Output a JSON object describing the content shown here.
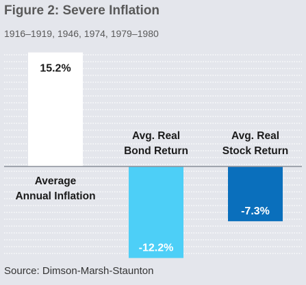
{
  "title": "Figure 2: Severe Inflation",
  "subtitle": "1916–1919, 1946, 1974, 1979–1980",
  "source": "Source: Dimson-Marsh-Staunton",
  "chart_data": {
    "type": "bar",
    "categories": [
      [
        "Average",
        "Annual Inflation"
      ],
      [
        "Avg. Real",
        "Bond Return"
      ],
      [
        "Avg. Real",
        "Stock Return"
      ]
    ],
    "values": [
      15.2,
      -12.2,
      -7.3
    ],
    "value_labels": [
      "15.2%",
      "-12.2%",
      "-7.3%"
    ],
    "colors": [
      "#ffffff",
      "#4dcff7",
      "#0a6fbc"
    ],
    "label_colors": [
      "#1a1a1a",
      "#ffffff",
      "#ffffff"
    ],
    "baseline_color": "#8a8f99",
    "gridlines": "dashed white horizontal",
    "background": "#e4e6ec"
  }
}
